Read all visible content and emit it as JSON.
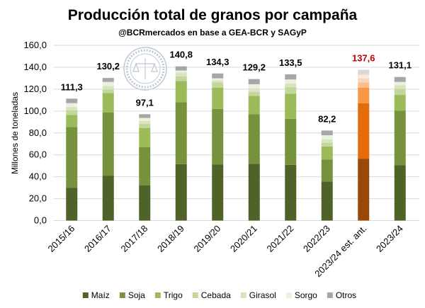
{
  "chart_data": {
    "type": "bar",
    "stacked": true,
    "title": "Producción total de granos por campaña",
    "subtitle": "@BCRmercados en base a GEA-BCR y SAGyP",
    "xlabel": "",
    "ylabel": "Millones de toneladas",
    "ylim": [
      0,
      160
    ],
    "yticks": [
      "0,0",
      "20,0",
      "40,0",
      "60,0",
      "80,0",
      "100,0",
      "120,0",
      "140,0",
      "160,0"
    ],
    "grid": true,
    "legend_position": "bottom",
    "categories": [
      "2015/16",
      "2016/17",
      "2017/18",
      "2018/19",
      "2019/20",
      "2020/21",
      "2021/22",
      "2022/23",
      "2023/24 est. ant.",
      "2023/24"
    ],
    "totals": [
      "111,3",
      "130,2",
      "97,1",
      "140,8",
      "134,3",
      "129,2",
      "133,5",
      "82,2",
      "137,6",
      "131,1"
    ],
    "highlight_index": 8,
    "series": [
      {
        "name": "Maíz",
        "values": [
          30,
          41,
          32,
          51.5,
          51.3,
          51.9,
          50.9,
          35.7,
          56.5,
          50.4
        ]
      },
      {
        "name": "Soja",
        "values": [
          55.5,
          57.8,
          35.1,
          56.5,
          50.6,
          45.1,
          42,
          20.1,
          50.6,
          49.8
        ]
      },
      {
        "name": "Trigo",
        "values": [
          11,
          17.7,
          17.5,
          19.3,
          19.5,
          16.9,
          22.9,
          11.9,
          14.3,
          14.5
        ]
      },
      {
        "name": "Cebada",
        "values": [
          4.2,
          3.2,
          3.7,
          4.3,
          4.8,
          3.6,
          6.1,
          3.3,
          4.8,
          5.4
        ]
      },
      {
        "name": "Girasol",
        "values": [
          3,
          3.2,
          2.8,
          3.7,
          1.7,
          3.3,
          3.2,
          3.2,
          3.7,
          3.5
        ]
      },
      {
        "name": "Sorgo",
        "values": [
          3.5,
          3.7,
          2.6,
          1.7,
          2,
          3.7,
          3.7,
          3.7,
          3.2,
          3
        ]
      },
      {
        "name": "Otros",
        "values": [
          4.1,
          3.6,
          3.4,
          3.8,
          4.4,
          4.7,
          4.7,
          4.3,
          4.5,
          4.5
        ]
      }
    ]
  },
  "colors": {
    "series": [
      "#4f6228",
      "#76923c",
      "#9bbb59",
      "#c3d69b",
      "#d7e4bd",
      "#ebf1de",
      "#a6a6a6"
    ],
    "highlight": [
      "#984807",
      "#e46c0a",
      "#f79646",
      "#fac090",
      "#fcd5b5",
      "#fde9d9",
      "#d9d9d9"
    ],
    "highlight_label": "#c00000",
    "grid": "#d9d9d9"
  },
  "logo": {
    "text": "BOLSA DE COMERCIO DE ROSARIO"
  }
}
